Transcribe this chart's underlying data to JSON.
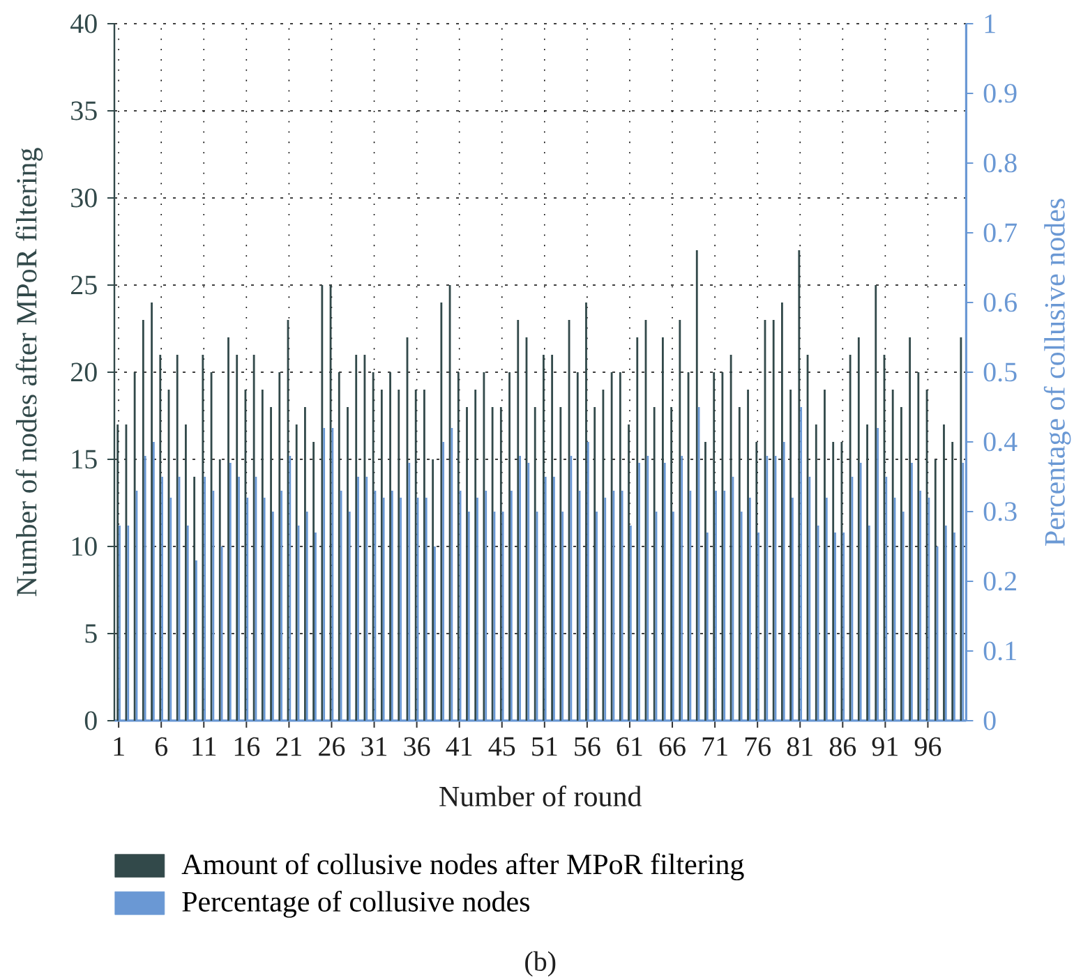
{
  "chart_data": {
    "type": "bar",
    "categories": [
      "1",
      null,
      null,
      null,
      null,
      "6",
      null,
      null,
      null,
      null,
      "11",
      null,
      null,
      null,
      null,
      "16",
      null,
      null,
      null,
      null,
      "21",
      null,
      null,
      null,
      null,
      "26",
      null,
      null,
      null,
      null,
      "31",
      null,
      null,
      null,
      null,
      "36",
      null,
      null,
      null,
      null,
      "41",
      null,
      null,
      null,
      null,
      "45",
      null,
      null,
      null,
      null,
      "51",
      null,
      null,
      null,
      null,
      "56",
      null,
      null,
      null,
      null,
      "61",
      null,
      null,
      null,
      null,
      "66",
      null,
      null,
      null,
      null,
      "71",
      null,
      null,
      null,
      null,
      "76",
      null,
      null,
      null,
      null,
      "81",
      null,
      null,
      null,
      null,
      "86",
      null,
      null,
      null,
      null,
      "91",
      null,
      null,
      null,
      null,
      "96",
      null,
      null,
      null,
      null
    ],
    "series": [
      {
        "name": "Amount of collusive nodes after MPoR filtering",
        "color": "#32494a",
        "values": [
          17,
          17,
          20,
          23,
          24,
          21,
          19,
          21,
          17,
          14,
          21,
          20,
          15,
          22,
          21,
          19,
          21,
          19,
          18,
          20,
          23,
          17,
          18,
          16,
          25,
          25,
          20,
          18,
          21,
          21,
          20,
          19,
          20,
          19,
          22,
          19,
          19,
          15,
          24,
          25,
          20,
          18,
          19,
          20,
          18,
          18,
          20,
          23,
          22,
          18,
          21,
          21,
          18,
          23,
          20,
          24,
          18,
          19,
          20,
          20,
          17,
          22,
          23,
          18,
          22,
          18,
          23,
          20,
          27,
          16,
          20,
          20,
          21,
          18,
          19,
          16,
          23,
          23,
          24,
          19,
          27,
          21,
          17,
          19,
          16,
          16,
          21,
          22,
          17,
          25,
          21,
          19,
          18,
          22,
          20,
          19,
          15,
          17,
          16,
          22
        ]
      },
      {
        "name": "Percentage of collusive nodes",
        "color": "#6a98d4",
        "axis": "y2",
        "values": [
          0.28,
          0.28,
          0.33,
          0.38,
          0.4,
          0.35,
          0.32,
          0.35,
          0.28,
          0.23,
          0.35,
          0.33,
          0.25,
          0.37,
          0.35,
          0.32,
          0.35,
          0.32,
          0.3,
          0.33,
          0.38,
          0.28,
          0.3,
          0.27,
          0.42,
          0.42,
          0.33,
          0.3,
          0.35,
          0.35,
          0.33,
          0.32,
          0.33,
          0.32,
          0.37,
          0.32,
          0.32,
          0.25,
          0.4,
          0.42,
          0.33,
          0.3,
          0.32,
          0.33,
          0.3,
          0.3,
          0.33,
          0.38,
          0.37,
          0.3,
          0.35,
          0.35,
          0.3,
          0.38,
          0.33,
          0.4,
          0.3,
          0.32,
          0.33,
          0.33,
          0.28,
          0.37,
          0.38,
          0.3,
          0.37,
          0.3,
          0.38,
          0.33,
          0.45,
          0.27,
          0.33,
          0.33,
          0.35,
          0.3,
          0.32,
          0.27,
          0.38,
          0.38,
          0.4,
          0.32,
          0.45,
          0.35,
          0.28,
          0.32,
          0.27,
          0.27,
          0.35,
          0.37,
          0.28,
          0.42,
          0.35,
          0.32,
          0.3,
          0.37,
          0.33,
          0.32,
          0.25,
          0.28,
          0.27,
          0.37
        ]
      }
    ],
    "ylim": [
      0,
      40
    ],
    "yticks": [
      0,
      5,
      10,
      15,
      20,
      25,
      30,
      35,
      40
    ],
    "y2lim": [
      0,
      1
    ],
    "y2ticks": [
      0,
      0.1,
      0.2,
      0.3,
      0.4,
      0.5,
      0.6,
      0.7,
      0.8,
      0.9,
      1
    ],
    "xlabel": "Number of round",
    "ylabel": "Number of nodes after MPoR filtering",
    "y2label": "Percentage of collusive nodes",
    "annotations": [
      "(b)"
    ],
    "grid": true,
    "legend": "bottom"
  }
}
